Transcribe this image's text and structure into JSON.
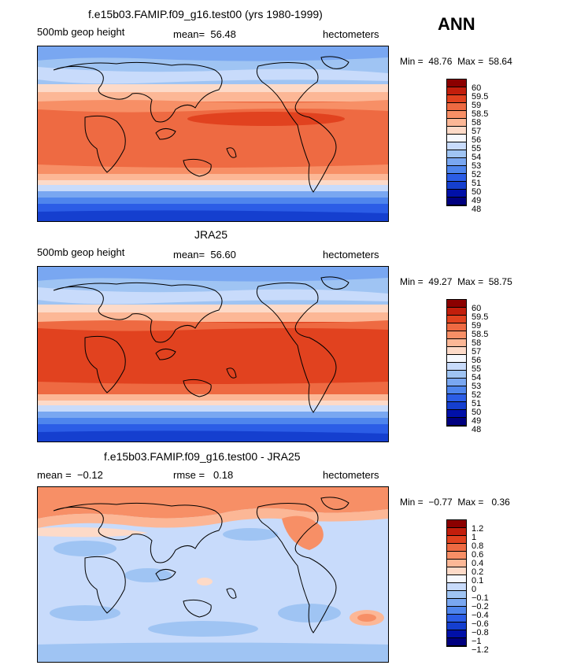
{
  "season": "ANN",
  "chart_data": [
    {
      "type": "heatmap",
      "title": "f.e15b03.FAMIP.f09_g16.test00 (yrs 1980-1999)",
      "variable": "500mb geop height",
      "mean_label": "mean=",
      "mean_value": "56.48",
      "units": "hectometers",
      "min_label": "Min =",
      "min_value": "48.76",
      "max_label": "Max =",
      "max_value": "58.64",
      "levels": [
        "60",
        "59.5",
        "59",
        "58.5",
        "58",
        "57",
        "56",
        "55",
        "54",
        "53",
        "52",
        "51",
        "50",
        "49",
        "48"
      ],
      "colors": [
        "#8b0000",
        "#c21e0c",
        "#e1421f",
        "#ee6a42",
        "#f78f66",
        "#fcb796",
        "#fddac8",
        "#f6f8fd",
        "#c8dbfb",
        "#9fc4f3",
        "#79a7f1",
        "#4e85ed",
        "#2b5de6",
        "#153fcf",
        "#0010a8",
        "#000080"
      ]
    },
    {
      "type": "heatmap",
      "title": "JRA25",
      "variable": "500mb geop height",
      "mean_label": "mean=",
      "mean_value": "56.60",
      "units": "hectometers",
      "min_label": "Min =",
      "min_value": "49.27",
      "max_label": "Max =",
      "max_value": "58.75",
      "levels": [
        "60",
        "59.5",
        "59",
        "58.5",
        "58",
        "57",
        "56",
        "55",
        "54",
        "53",
        "52",
        "51",
        "50",
        "49",
        "48"
      ],
      "colors": [
        "#8b0000",
        "#c21e0c",
        "#e1421f",
        "#ee6a42",
        "#f78f66",
        "#fcb796",
        "#fddac8",
        "#f6f8fd",
        "#c8dbfb",
        "#9fc4f3",
        "#79a7f1",
        "#4e85ed",
        "#2b5de6",
        "#153fcf",
        "#0010a8",
        "#000080"
      ]
    },
    {
      "type": "heatmap",
      "title": "f.e15b03.FAMIP.f09_g16.test00 - JRA25",
      "variable_label": "mean =",
      "mean_value": "−0.12",
      "rmse_label": "rmse =",
      "rmse_value": "0.18",
      "units": "hectometers",
      "min_label": "Min =",
      "min_value": "−0.77",
      "max_label": "Max =",
      "max_value": "0.36",
      "levels": [
        "1.2",
        "1",
        "0.8",
        "0.6",
        "0.4",
        "0.2",
        "0.1",
        "0",
        "−0.1",
        "−0.2",
        "−0.4",
        "−0.6",
        "−0.8",
        "−1",
        "−1.2"
      ],
      "colors": [
        "#8b0000",
        "#c21e0c",
        "#e1421f",
        "#ee6a42",
        "#f78f66",
        "#fcb796",
        "#fddac8",
        "#f6f8fd",
        "#c8dbfb",
        "#9fc4f3",
        "#79a7f1",
        "#4e85ed",
        "#2b5de6",
        "#153fcf",
        "#0010a8",
        "#000080"
      ]
    }
  ]
}
